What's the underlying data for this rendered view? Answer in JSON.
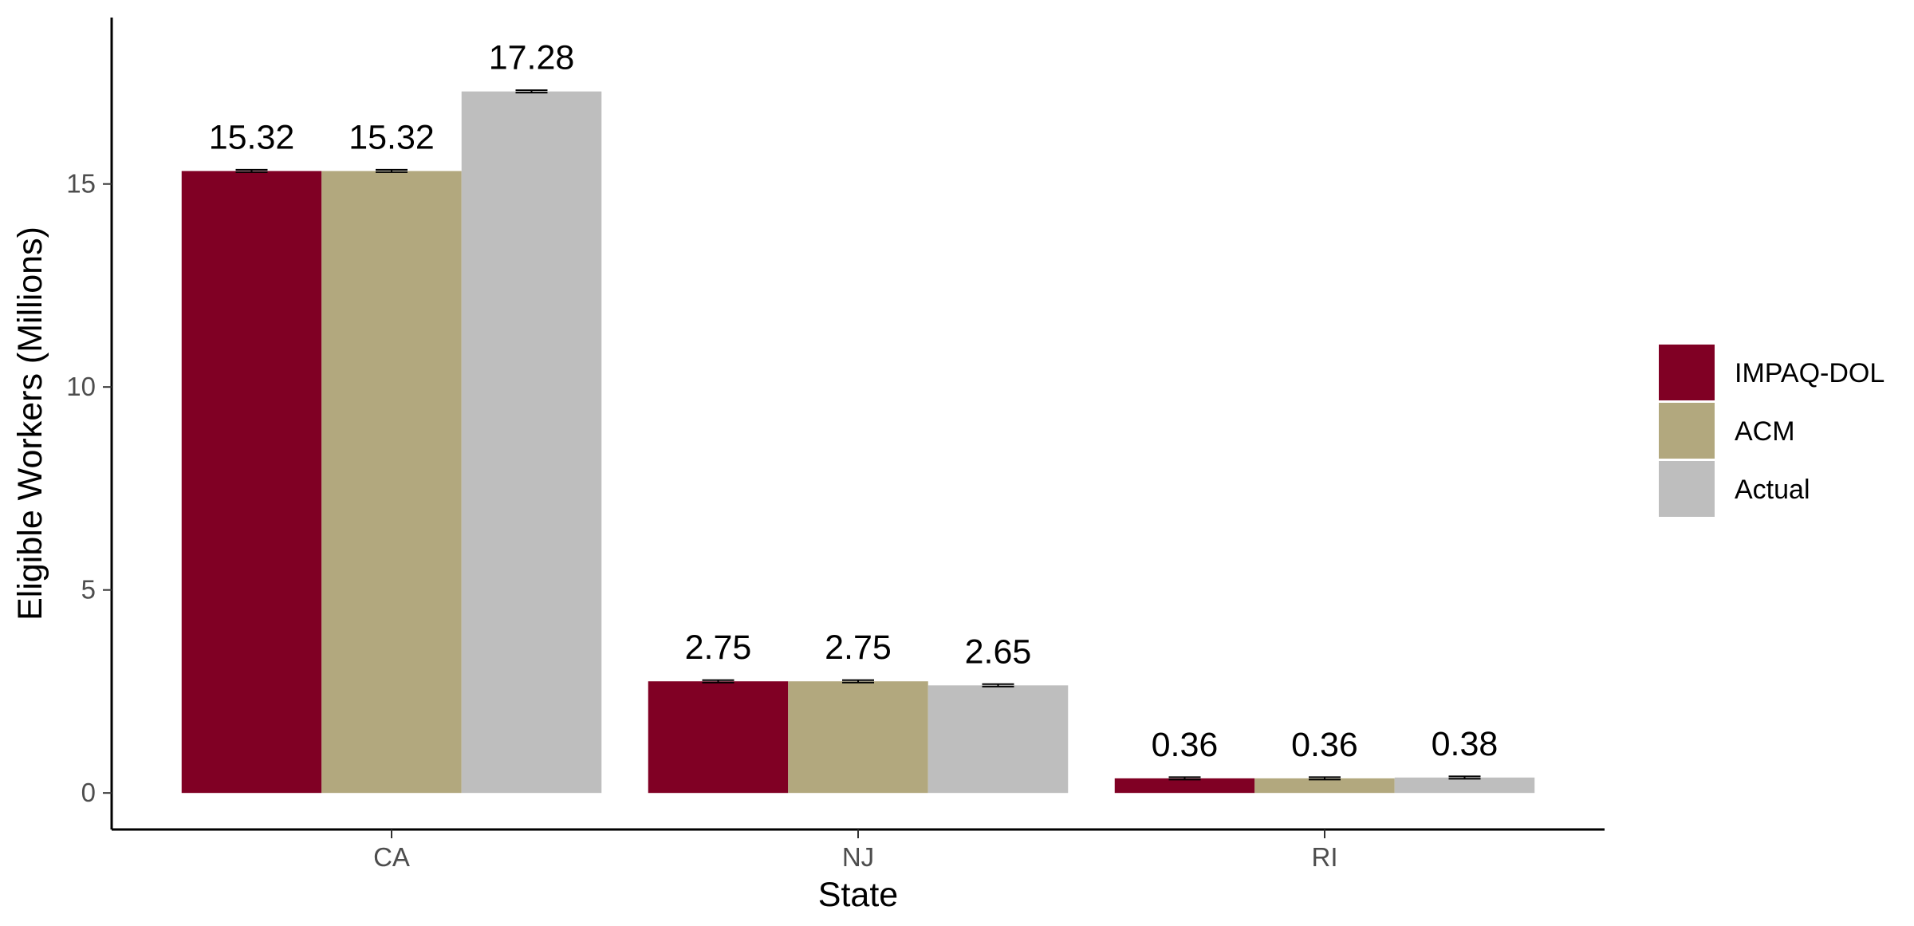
{
  "chart_data": {
    "type": "bar",
    "xlabel": "State",
    "ylabel": "Eligible Workers (Millions)",
    "categories": [
      "CA",
      "NJ",
      "RI"
    ],
    "ylim": [
      -0.9,
      19.1
    ],
    "yticks": [
      0,
      5,
      10,
      15
    ],
    "grid": false,
    "legend_position": "right",
    "series": [
      {
        "name": "IMPAQ-DOL",
        "color": "#800024",
        "values": [
          15.32,
          2.75,
          0.36
        ],
        "labels": [
          "15.32",
          "2.75",
          "0.36"
        ]
      },
      {
        "name": "ACM",
        "color": "#B2A87E",
        "values": [
          15.32,
          2.75,
          0.36
        ],
        "labels": [
          "15.32",
          "2.75",
          "0.36"
        ]
      },
      {
        "name": "Actual",
        "color": "#BEBEBE",
        "values": [
          17.28,
          2.65,
          0.38
        ],
        "labels": [
          "17.28",
          "2.65",
          "0.38"
        ]
      }
    ]
  }
}
